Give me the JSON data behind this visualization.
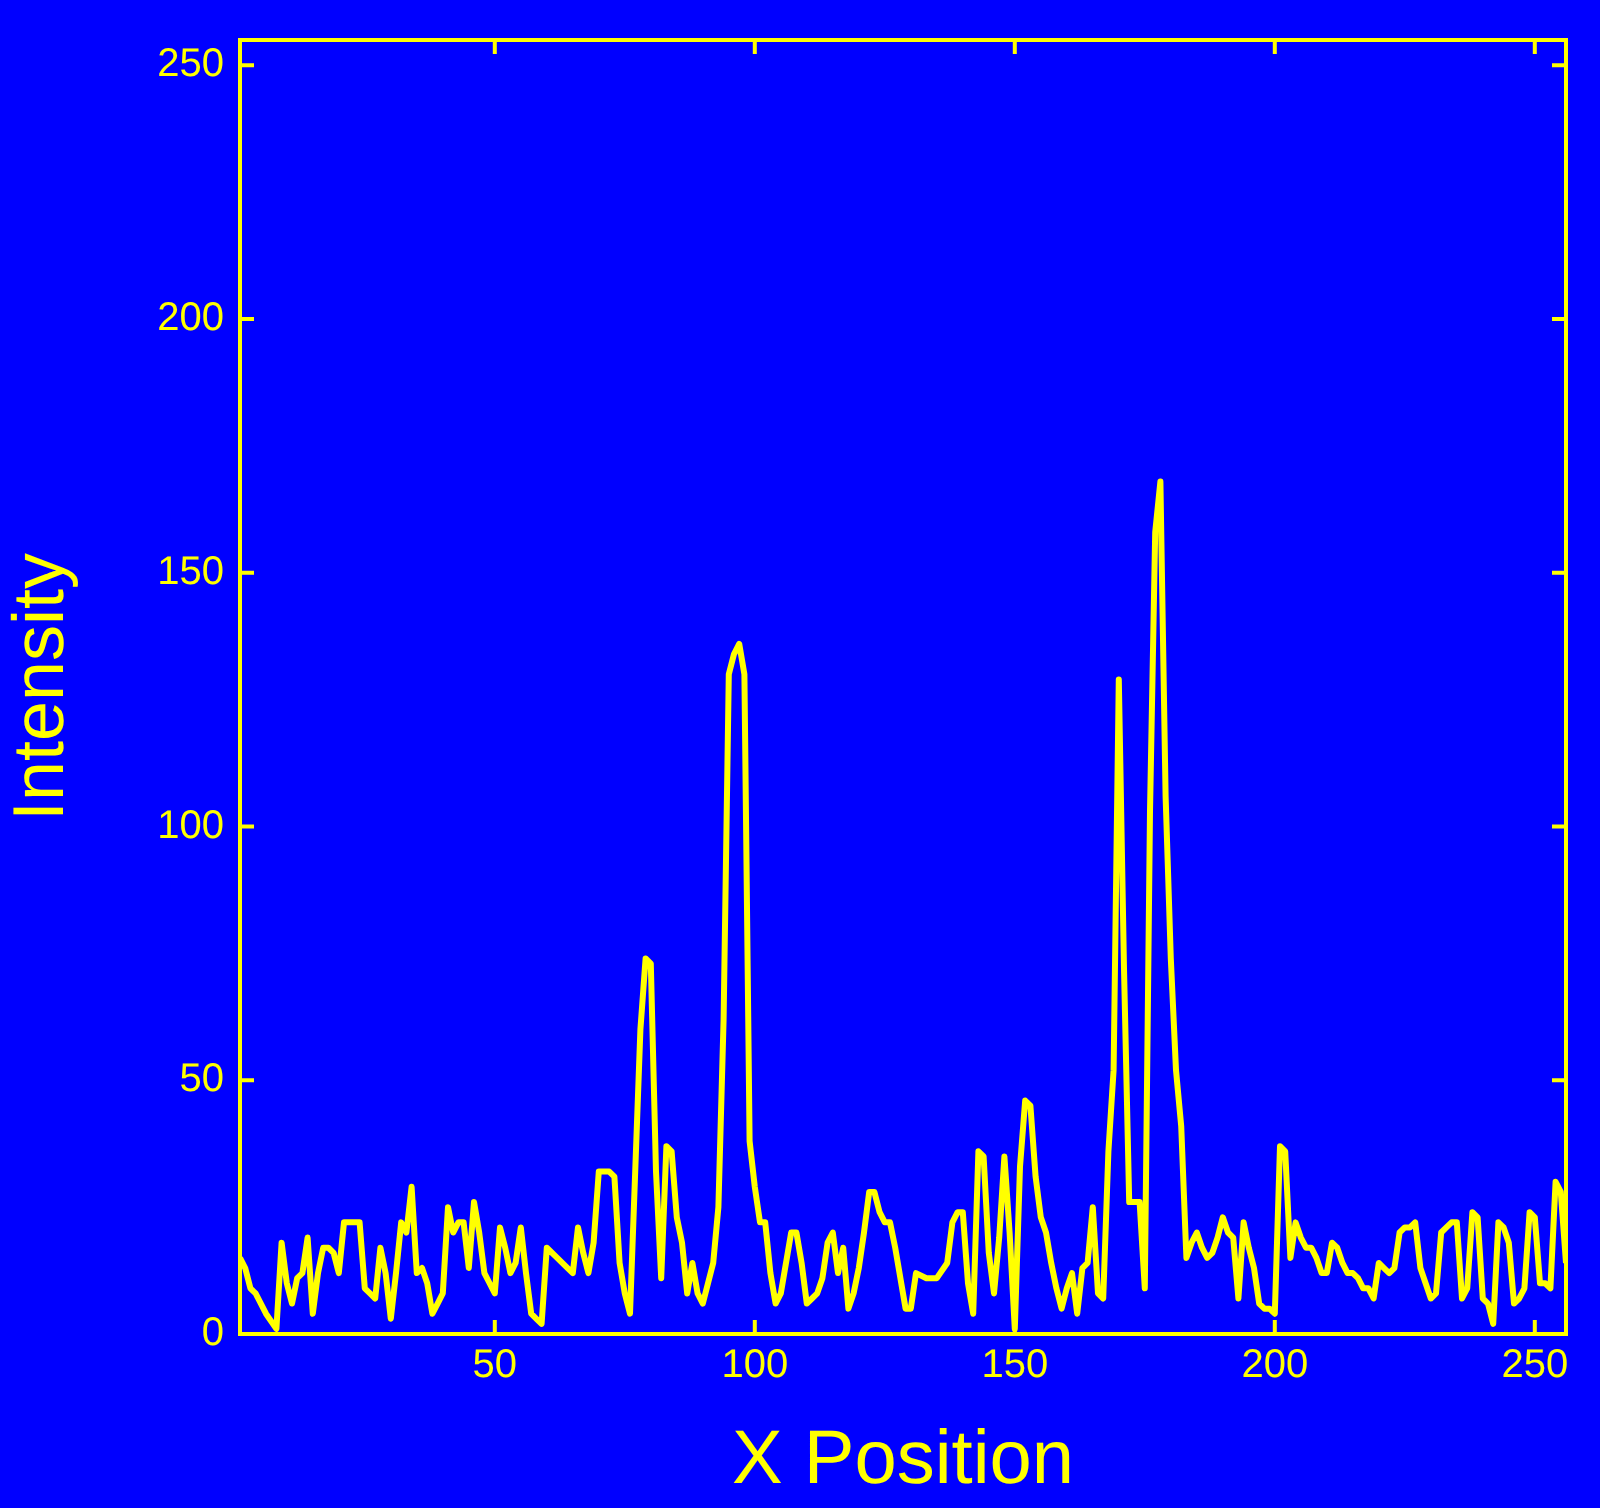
{
  "chart_data": {
    "type": "line",
    "xlabel": "X Position",
    "ylabel": "Intensity",
    "x": [
      1,
      2,
      3,
      4,
      6,
      8,
      9,
      10,
      11,
      12,
      13,
      14,
      15,
      16,
      17,
      18,
      19,
      20,
      21,
      23,
      24,
      25,
      26,
      27,
      28,
      29,
      30,
      31,
      32,
      33,
      34,
      35,
      36,
      37,
      38,
      39,
      40,
      41,
      42,
      43,
      44,
      45,
      46,
      47,
      48,
      49,
      50,
      51,
      52,
      53,
      54,
      55,
      56,
      57,
      58,
      59,
      60,
      62,
      64,
      65,
      66,
      67,
      68,
      69,
      70,
      72,
      73,
      74,
      75,
      76,
      77,
      78,
      79,
      80,
      81,
      82,
      83,
      84,
      85,
      86,
      87,
      88,
      89,
      90,
      91,
      92,
      93,
      94,
      95,
      96,
      97,
      98,
      99,
      100,
      101,
      102,
      103,
      104,
      105,
      106,
      107,
      108,
      109,
      110,
      111,
      112,
      113,
      114,
      115,
      116,
      117,
      118,
      119,
      120,
      121,
      122,
      123,
      124,
      125,
      126,
      127,
      128,
      129,
      130,
      131,
      133,
      135,
      137,
      138,
      139,
      140,
      141,
      142,
      143,
      144,
      145,
      146,
      147,
      148,
      149,
      150,
      151,
      152,
      153,
      154,
      155,
      156,
      157,
      158,
      159,
      160,
      161,
      162,
      163,
      164,
      165,
      166,
      167,
      168,
      169,
      170,
      171,
      172,
      173,
      174,
      175,
      176,
      177,
      178,
      179,
      180,
      181,
      182,
      183,
      184,
      185,
      186,
      187,
      188,
      189,
      190,
      191,
      192,
      193,
      194,
      195,
      196,
      197,
      198,
      199,
      200,
      201,
      202,
      203,
      204,
      205,
      206,
      207,
      208,
      209,
      210,
      211,
      212,
      213,
      214,
      215,
      216,
      217,
      218,
      219,
      220,
      221,
      222,
      223,
      224,
      225,
      226,
      227,
      228,
      229,
      230,
      231,
      232,
      233,
      234,
      235,
      236,
      237,
      238,
      239,
      240,
      241,
      242,
      243,
      244,
      245,
      246,
      247,
      248,
      249,
      250,
      251,
      252,
      253,
      254,
      255,
      256
    ],
    "series": [
      {
        "color": "#ffff00",
        "values": [
          15,
          13,
          9,
          8,
          4,
          1,
          18,
          10,
          6,
          11,
          12,
          19,
          4,
          12,
          17,
          17,
          16,
          12,
          22,
          22,
          22,
          9,
          8,
          7,
          17,
          12,
          3,
          12,
          22,
          20,
          29,
          12,
          13,
          10,
          4,
          6,
          8,
          25,
          20,
          22,
          22,
          13,
          26,
          20,
          12,
          10,
          8,
          21,
          17,
          12,
          14,
          21,
          12,
          4,
          3,
          2,
          17,
          15,
          13,
          12,
          21,
          16,
          12,
          18,
          32,
          32,
          31,
          14,
          8,
          4,
          32,
          60,
          74,
          73,
          32,
          11,
          37,
          36,
          23,
          18,
          8,
          14,
          8,
          6,
          10,
          14,
          25,
          62,
          130,
          134,
          136,
          130,
          38,
          29,
          22,
          22,
          12,
          6,
          8,
          14,
          20,
          20,
          14,
          6,
          7,
          8,
          11,
          18,
          20,
          12,
          17,
          5,
          8,
          13,
          20,
          28,
          28,
          24,
          22,
          22,
          17,
          11,
          5,
          5,
          12,
          11,
          11,
          14,
          22,
          24,
          24,
          10,
          4,
          36,
          35,
          16,
          8,
          19,
          35,
          20,
          1,
          33,
          46,
          45,
          31,
          23,
          20,
          14,
          9,
          5,
          9,
          12,
          4,
          13,
          14,
          25,
          8,
          7,
          36,
          52,
          129,
          72,
          26,
          26,
          26,
          9,
          103,
          158,
          168,
          106,
          74,
          52,
          41,
          15,
          18,
          20,
          17,
          15,
          16,
          19,
          23,
          20,
          19,
          7,
          22,
          17,
          13,
          6,
          5,
          5,
          4,
          37,
          36,
          15,
          22,
          19,
          17,
          17,
          15,
          12,
          12,
          18,
          17,
          14,
          12,
          12,
          11,
          9,
          9,
          7,
          14,
          13,
          12,
          13,
          20,
          21,
          21,
          22,
          13,
          10,
          7,
          8,
          20,
          21,
          22,
          22,
          7,
          9,
          24,
          23,
          7,
          6,
          2,
          22,
          21,
          18,
          6,
          7,
          9,
          24,
          23,
          10,
          10,
          9,
          30,
          28,
          14
        ]
      }
    ],
    "xlim": [
      1,
      256
    ],
    "ylim": [
      0,
      255
    ],
    "xticks": [
      50,
      100,
      150,
      200,
      250
    ],
    "yticks": [
      0,
      50,
      100,
      150,
      200,
      250
    ],
    "grid": false,
    "legend": false,
    "marker": "none",
    "line_style": "solid"
  }
}
